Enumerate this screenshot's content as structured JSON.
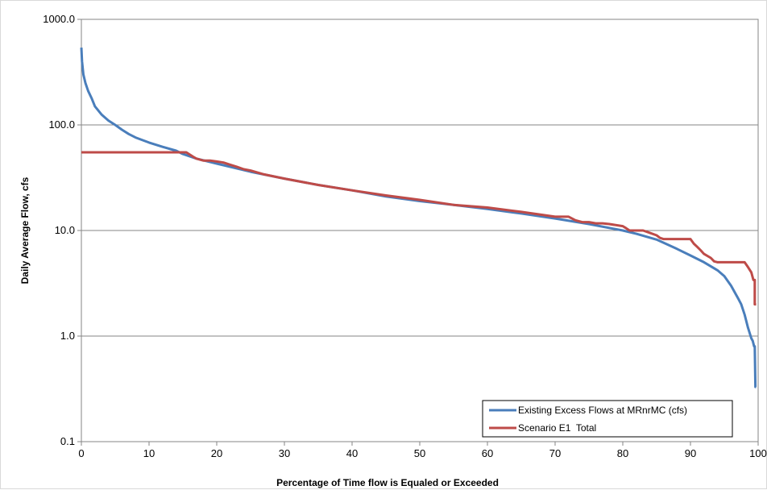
{
  "chart_data": {
    "type": "line",
    "xlabel": "Percentage of Time flow is Equaled or Exceeded",
    "ylabel": "Daily Average Flow, cfs",
    "xlim": [
      0,
      100
    ],
    "ylim": [
      0.1,
      1000
    ],
    "y_scale": "log",
    "grid": "horizontal major gridlines",
    "legend_position": "bottom-right",
    "x_ticks": [
      "0",
      "10",
      "20",
      "30",
      "40",
      "50",
      "60",
      "70",
      "80",
      "90",
      "100"
    ],
    "y_ticks": [
      "1000.0",
      "100.0",
      "10.0",
      "1.0",
      "0.1"
    ],
    "series": [
      {
        "name": "Existing Excess Flows at MRnrMC (cfs)",
        "color": "#4a7ebb",
        "x": [
          0,
          0.1,
          0.3,
          0.6,
          1,
          1.5,
          2,
          3,
          4,
          5,
          6,
          7,
          8,
          10,
          12,
          14,
          15,
          17,
          20,
          25,
          30,
          35,
          40,
          45,
          50,
          55,
          60,
          65,
          70,
          75,
          80,
          82,
          85,
          88,
          90,
          92,
          94,
          95,
          96,
          97,
          97.5,
          98,
          98.5,
          99,
          99.2,
          99.4,
          99.5,
          99.6,
          99.7
        ],
        "y": [
          540,
          400,
          300,
          250,
          210,
          180,
          150,
          125,
          110,
          100,
          90,
          82,
          76,
          68,
          62,
          57,
          53,
          48,
          43,
          36,
          31,
          27,
          24,
          21,
          19,
          17.5,
          16,
          14.5,
          13,
          11.5,
          10,
          9.3,
          8.2,
          6.7,
          5.8,
          5.0,
          4.2,
          3.7,
          3.0,
          2.3,
          2.0,
          1.6,
          1.2,
          0.95,
          0.9,
          0.8,
          0.8,
          0.33,
          0.33
        ]
      },
      {
        "name": "Scenario E1  Total",
        "color": "#be4b48",
        "x": [
          0,
          15.5,
          16.5,
          17,
          18,
          19,
          20,
          21,
          22,
          23,
          24,
          25,
          27,
          30,
          35,
          40,
          45,
          50,
          55,
          60,
          65,
          70,
          72,
          73,
          74,
          75,
          76,
          77,
          78,
          80,
          80.5,
          81,
          83,
          84,
          85,
          85.5,
          86,
          90,
          90.5,
          91,
          91.5,
          92,
          93,
          93.5,
          94,
          98,
          98.5,
          99,
          99.3,
          99.5,
          99.5,
          99.7
        ],
        "y": [
          55,
          55,
          50,
          48,
          46,
          46,
          45,
          44,
          42,
          40,
          38,
          37,
          34,
          31,
          27,
          24,
          21.5,
          19.5,
          17.5,
          16.5,
          15,
          13.5,
          13.5,
          12.5,
          12,
          12,
          11.7,
          11.7,
          11.5,
          11,
          10.5,
          10,
          10,
          9.5,
          9,
          8.5,
          8.3,
          8.3,
          7.5,
          7,
          6.5,
          6,
          5.5,
          5.1,
          5,
          5,
          4.5,
          4,
          3.4,
          3.4,
          2.0,
          2.0
        ]
      }
    ]
  }
}
